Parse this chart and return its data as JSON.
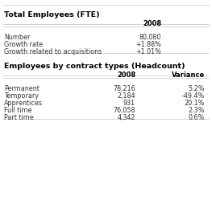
{
  "section1_title": "Total Employees (FTE)",
  "section1_col_header": "2008",
  "section1_rows": [
    [
      "Number",
      "80,080"
    ],
    [
      "Growth rate",
      "+1.88%"
    ],
    [
      "Growth related to acquisitions",
      "+1.01%"
    ]
  ],
  "section2_title": "Employees by contract types (Headcount)",
  "section2_col_headers": [
    "2008",
    "Variance"
  ],
  "section2_rows": [
    [
      "Permanent",
      "78,216",
      "5.2%"
    ],
    [
      "Temporary",
      "2,184",
      "-49.4%"
    ],
    [
      "Apprentices",
      "931",
      "20.1%"
    ],
    [
      "Full time",
      "76,058",
      "2.3%"
    ],
    [
      "Part time",
      "4,342",
      "0.6%"
    ]
  ],
  "bg_color": "#ffffff",
  "title_color": "#000000",
  "header_color": "#000000",
  "row_color": "#333333",
  "line_color": "#cccccc",
  "title_fontsize": 6.8,
  "header_fontsize": 6.0,
  "row_fontsize": 5.8
}
